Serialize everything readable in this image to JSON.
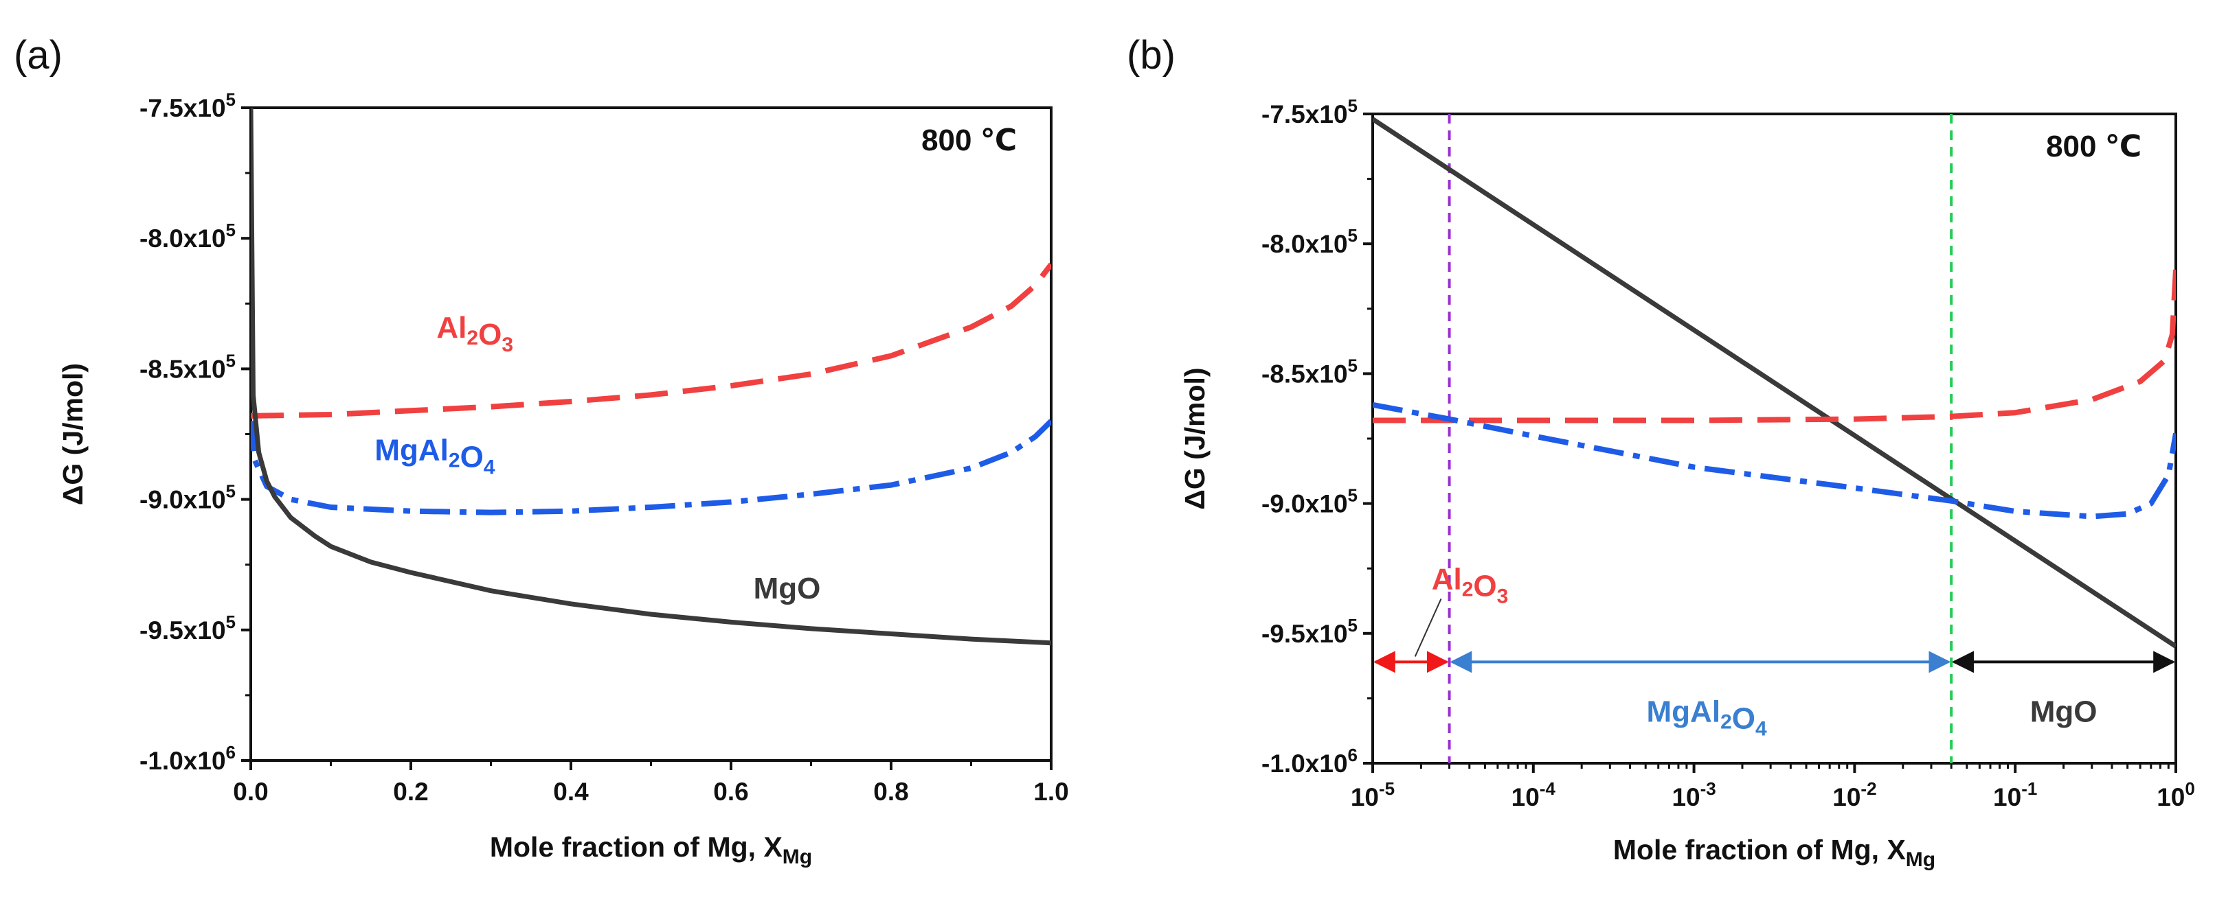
{
  "colors": {
    "Al2O3": "#f04040",
    "MgAl2O4": "#1e5ce8",
    "MgO": "#3a3a3a",
    "marker_left": "#9b30d0",
    "marker_right": "#22cc55",
    "mgal2o4_range_label": "#3a7fd0"
  },
  "chart_data": [
    {
      "panel": "(a)",
      "type": "line",
      "xlabel": "Mole fraction of Mg, X",
      "xlabel_sub": "Mg",
      "ylabel": "ΔG (J/mol)",
      "xlim": [
        0.0,
        1.0
      ],
      "ylim": [
        -1000000,
        -750000
      ],
      "xticks": [
        0.0,
        0.2,
        0.4,
        0.6,
        0.8,
        1.0
      ],
      "xtick_labels": [
        "0.0",
        "0.2",
        "0.4",
        "0.6",
        "0.8",
        "1.0"
      ],
      "yticks": [
        -750000,
        -800000,
        -850000,
        -900000,
        -950000,
        -1000000
      ],
      "ytick_labels": [
        {
          "mant": "-7.5x10",
          "exp": "5"
        },
        {
          "mant": "-8.0x10",
          "exp": "5"
        },
        {
          "mant": "-8.5x10",
          "exp": "5"
        },
        {
          "mant": "-9.0x10",
          "exp": "5"
        },
        {
          "mant": "-9.5x10",
          "exp": "5"
        },
        {
          "mant": "-1.0x10",
          "exp": "6"
        }
      ],
      "temperature": "800 ℃",
      "series": [
        {
          "name": "Al2O3",
          "style": "dashed",
          "x": [
            0.0,
            0.1,
            0.2,
            0.3,
            0.4,
            0.5,
            0.6,
            0.7,
            0.8,
            0.9,
            0.95,
            0.98,
            1.0
          ],
          "y": [
            -868000,
            -867500,
            -866000,
            -864500,
            -862500,
            -860000,
            -856500,
            -852000,
            -845000,
            -834000,
            -826000,
            -818000,
            -810000
          ]
        },
        {
          "name": "MgAl2O4",
          "style": "dashdot",
          "x": [
            0.0,
            0.005,
            0.02,
            0.05,
            0.1,
            0.2,
            0.3,
            0.4,
            0.5,
            0.6,
            0.7,
            0.8,
            0.9,
            0.95,
            0.98,
            1.0
          ],
          "y": [
            -870000,
            -885000,
            -895000,
            -900000,
            -903000,
            -904500,
            -905000,
            -904500,
            -903000,
            -901000,
            -898000,
            -894500,
            -888000,
            -882000,
            -876000,
            -870000
          ]
        },
        {
          "name": "MgO",
          "style": "solid",
          "x": [
            0.0,
            0.003,
            0.01,
            0.02,
            0.03,
            0.05,
            0.08,
            0.1,
            0.15,
            0.2,
            0.3,
            0.4,
            0.5,
            0.6,
            0.7,
            0.8,
            0.9,
            1.0
          ],
          "y": [
            -750000,
            -860000,
            -882000,
            -893000,
            -899000,
            -907000,
            -914000,
            -918000,
            -924000,
            -928000,
            -935000,
            -940000,
            -944000,
            -947000,
            -949500,
            -951500,
            -953500,
            -955000
          ]
        }
      ],
      "labels": [
        {
          "series": "Al2O3",
          "x": 0.28,
          "y": -838000
        },
        {
          "series": "MgAl2O4",
          "x": 0.23,
          "y": -885000
        },
        {
          "series": "MgO",
          "x": 0.67,
          "y": -938000
        }
      ]
    },
    {
      "panel": "(b)",
      "type": "line",
      "xscale": "log",
      "xlabel": "Mole fraction of Mg, X",
      "xlabel_sub": "Mg",
      "ylabel": "ΔG (J/mol)",
      "xlim": [
        1e-05,
        1.0
      ],
      "ylim": [
        -1000000,
        -750000
      ],
      "xticks": [
        1e-05,
        0.0001,
        0.001,
        0.01,
        0.1,
        1.0
      ],
      "xtick_labels": [
        {
          "base": "10",
          "exp": "-5"
        },
        {
          "base": "10",
          "exp": "-4"
        },
        {
          "base": "10",
          "exp": "-3"
        },
        {
          "base": "10",
          "exp": "-2"
        },
        {
          "base": "10",
          "exp": "-1"
        },
        {
          "base": "10",
          "exp": "0"
        }
      ],
      "yticks": [
        -750000,
        -800000,
        -850000,
        -900000,
        -950000,
        -1000000
      ],
      "ytick_labels": [
        {
          "mant": "-7.5x10",
          "exp": "5"
        },
        {
          "mant": "-8.0x10",
          "exp": "5"
        },
        {
          "mant": "-8.5x10",
          "exp": "5"
        },
        {
          "mant": "-9.0x10",
          "exp": "5"
        },
        {
          "mant": "-9.5x10",
          "exp": "5"
        },
        {
          "mant": "-1.0x10",
          "exp": "6"
        }
      ],
      "temperature": "800 ℃",
      "series": [
        {
          "name": "MgO",
          "style": "solid",
          "x": [
            1e-05,
            1.0
          ],
          "y": [
            -752000,
            -955000
          ]
        },
        {
          "name": "Al2O3",
          "style": "dashed",
          "x": [
            1e-05,
            0.0001,
            0.001,
            0.01,
            0.04,
            0.1,
            0.3,
            0.6,
            0.85,
            0.95,
            1.0
          ],
          "y": [
            -868000,
            -868000,
            -868000,
            -867500,
            -866500,
            -865000,
            -860000,
            -853000,
            -845000,
            -835000,
            -810000
          ]
        },
        {
          "name": "MgAl2O4",
          "style": "dashdot",
          "x": [
            1e-05,
            3e-05,
            0.0001,
            0.001,
            0.01,
            0.04,
            0.1,
            0.3,
            0.5,
            0.7,
            0.9,
            1.0
          ],
          "y": [
            -862000,
            -867500,
            -874000,
            -886000,
            -894000,
            -899000,
            -903000,
            -905000,
            -904000,
            -900000,
            -889000,
            -873000
          ]
        }
      ],
      "vlines": [
        {
          "x": 3e-05,
          "color_key": "marker_left"
        },
        {
          "x": 0.04,
          "color_key": "marker_right"
        }
      ],
      "ranges": [
        {
          "phase": "Al2O3",
          "x0": 1e-05,
          "x1": 3e-05,
          "y": -961000,
          "label_x": 3e-05,
          "label_y": -933000,
          "color_key": "Al2O3"
        },
        {
          "phase": "MgAl2O4",
          "x0": 3e-05,
          "x1": 0.04,
          "y": -961000,
          "label_x": 0.0012,
          "label_y": -984000,
          "color_key": "mgal2o4_range_label"
        },
        {
          "phase": "MgO",
          "x0": 0.04,
          "x1": 1.0,
          "y": -961000,
          "label_x": 0.2,
          "label_y": -984000,
          "color_key": "MgO"
        }
      ]
    }
  ]
}
